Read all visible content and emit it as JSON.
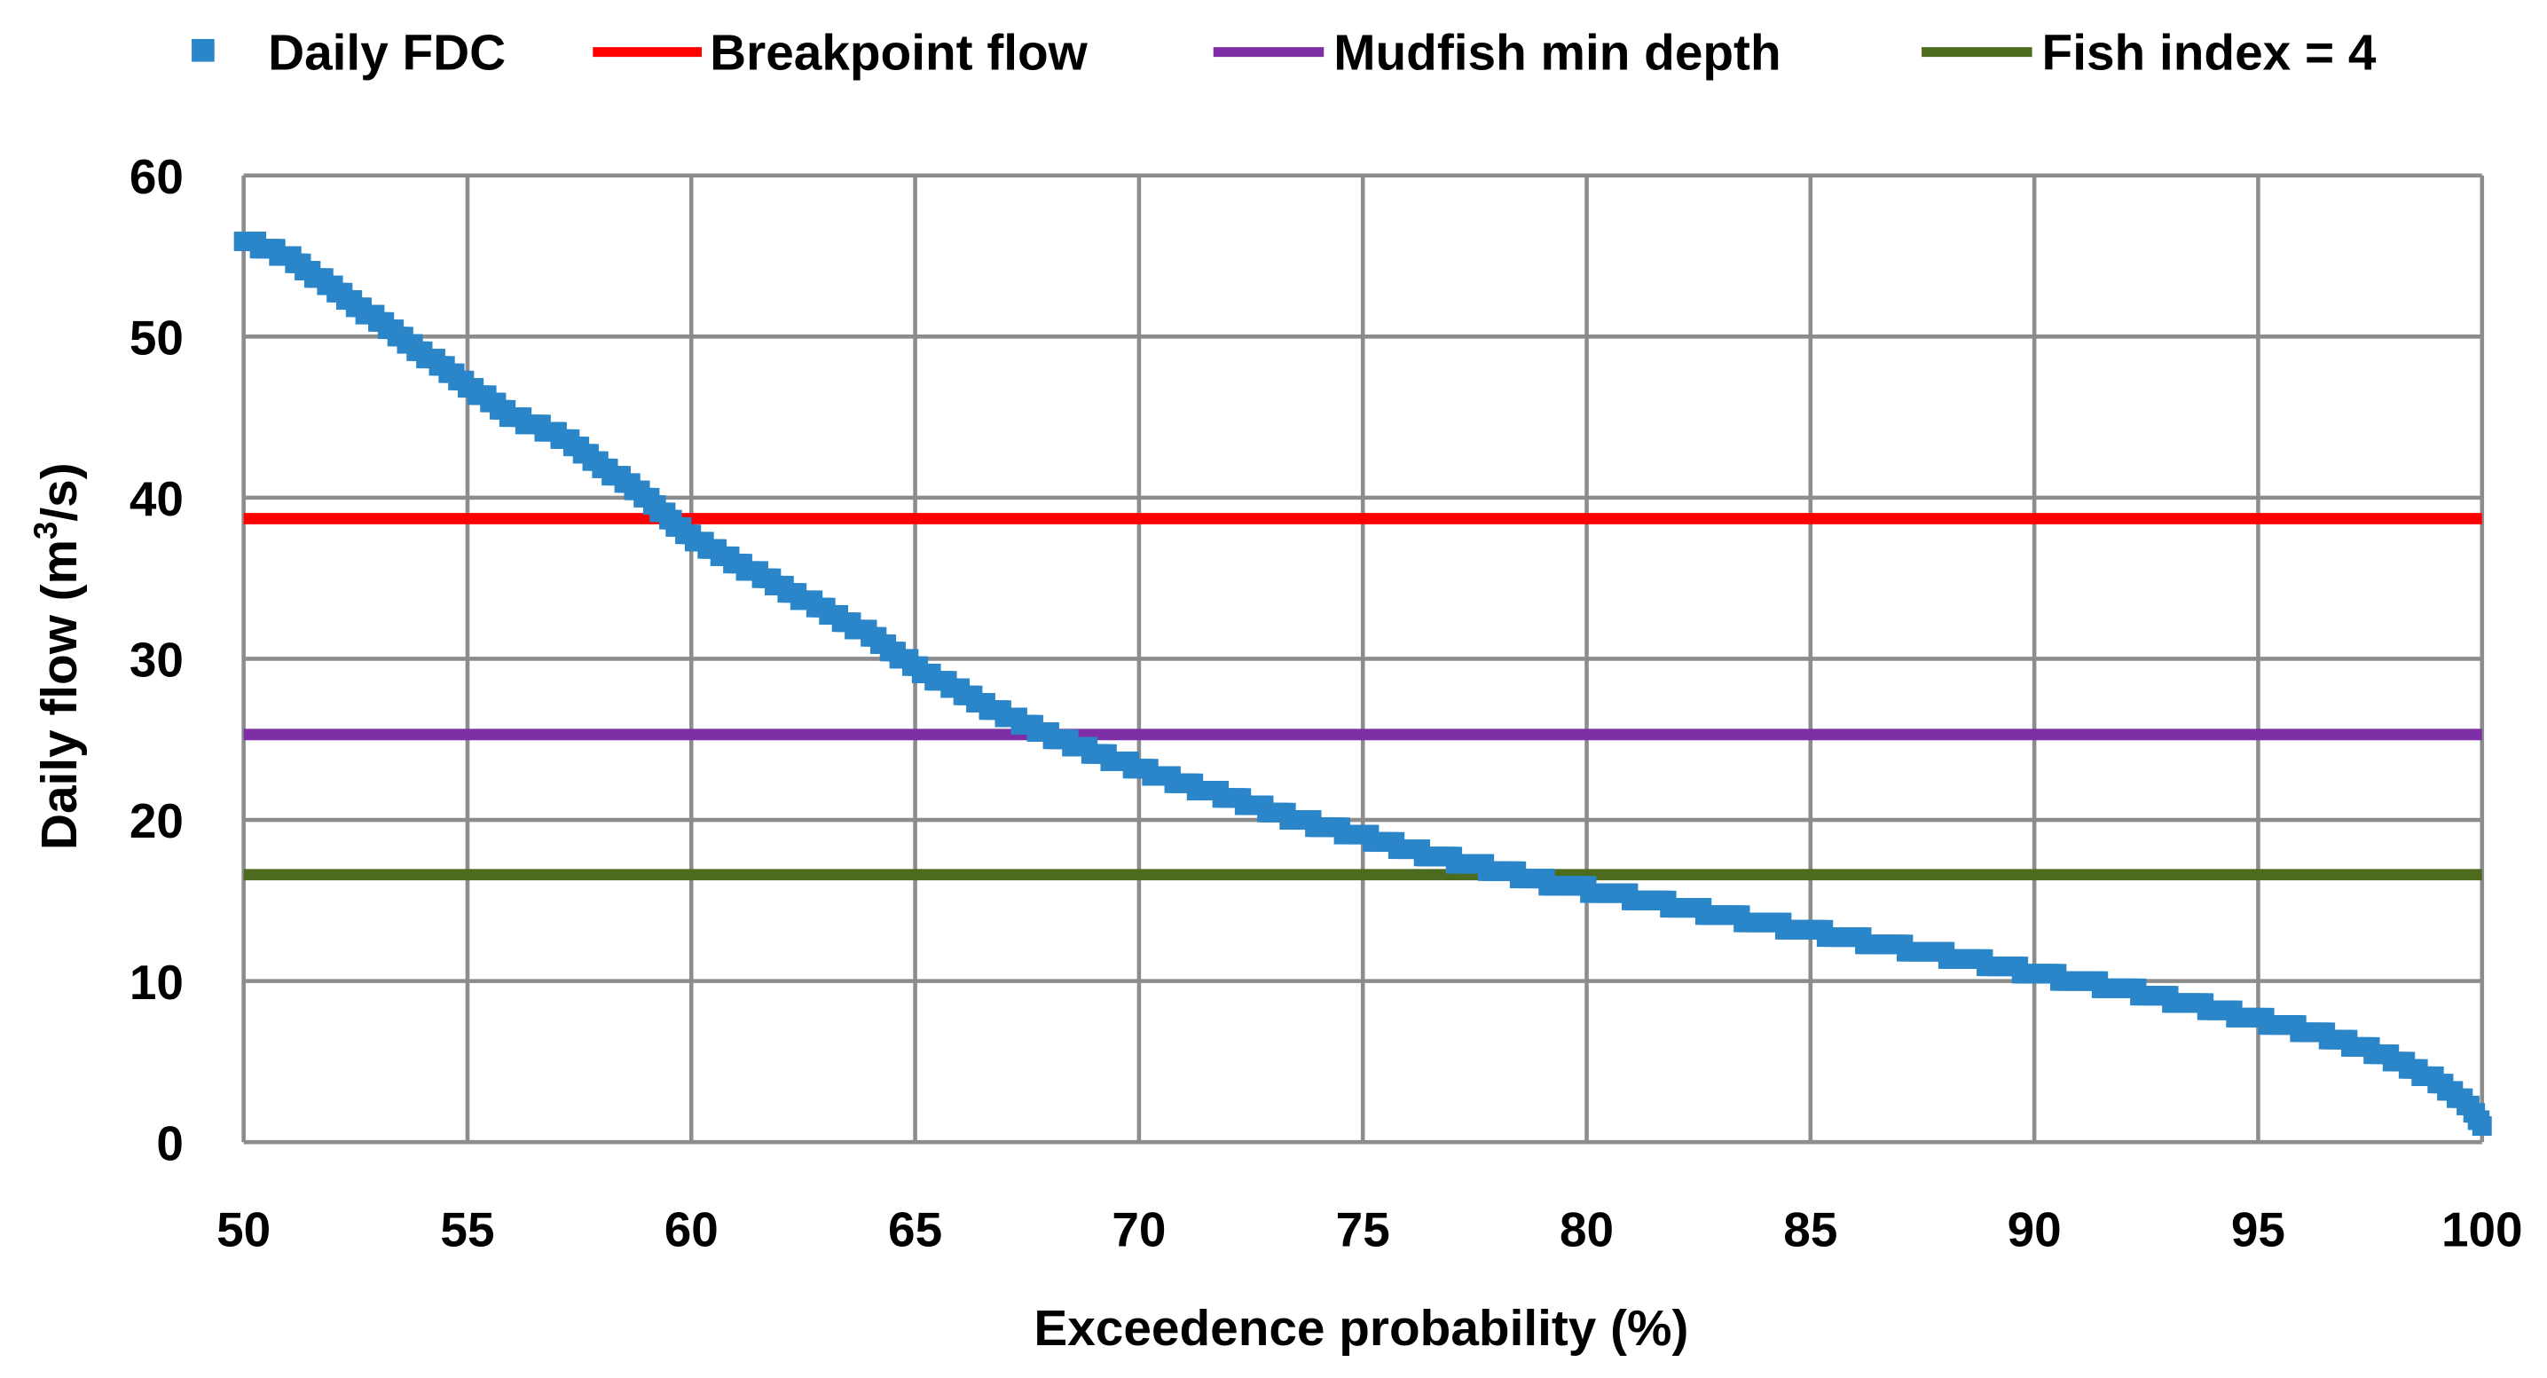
{
  "chart_data": {
    "type": "line",
    "title": "",
    "xlabel": "Exceedence probability (%)",
    "ylabel_prefix": "Daily flow (m",
    "ylabel_sup": "3",
    "ylabel_suffix": "/s)",
    "xlim": [
      50,
      100
    ],
    "ylim": [
      0,
      60
    ],
    "x_ticks": [
      50,
      55,
      60,
      65,
      70,
      75,
      80,
      85,
      90,
      95,
      100
    ],
    "y_ticks": [
      0,
      10,
      20,
      30,
      40,
      50,
      60
    ],
    "grid": true,
    "legend_position": "top",
    "colors": {
      "fdc": "#2a86c8",
      "breakpoint": "#ff0000",
      "mudfish": "#7f2fa6",
      "fish_index": "#4d6b1f",
      "grid": "#8c8c8c"
    },
    "series": [
      {
        "name": "Daily FDC",
        "style": "markers",
        "x": [
          50,
          51,
          52,
          53,
          54,
          55,
          56,
          57,
          58,
          59,
          60,
          61,
          62,
          63,
          64,
          65,
          66,
          67,
          68,
          69,
          70,
          71,
          72,
          73,
          74,
          75,
          76,
          77,
          78,
          79,
          80,
          81,
          82,
          83,
          84,
          85,
          86,
          87,
          88,
          89,
          90,
          91,
          92,
          93,
          94,
          95,
          96,
          97,
          98,
          99,
          99.5,
          99.8,
          100
        ],
        "values": [
          56,
          55,
          53,
          51,
          49,
          47,
          45,
          44,
          42,
          40,
          37.5,
          36,
          34.5,
          33,
          31.5,
          29.5,
          28,
          26.5,
          25.3,
          24.2,
          23.2,
          22.3,
          21.4,
          20.5,
          19.7,
          19,
          18.2,
          17.5,
          16.9,
          16.2,
          15.7,
          15.2,
          14.7,
          14.1,
          13.6,
          13.1,
          12.6,
          12.1,
          11.6,
          11.1,
          10.5,
          10,
          9.5,
          8.9,
          8.3,
          7.6,
          7,
          6.2,
          5.2,
          3.8,
          2.8,
          2,
          1
        ]
      },
      {
        "name": "Breakpoint flow",
        "style": "line",
        "x": [
          50,
          100
        ],
        "values": [
          38.7,
          38.7
        ]
      },
      {
        "name": "Mudfish min depth",
        "style": "line",
        "x": [
          50,
          100
        ],
        "values": [
          25.3,
          25.3
        ]
      },
      {
        "name": "Fish index = 4",
        "style": "line",
        "x": [
          50,
          100
        ],
        "values": [
          16.6,
          16.6
        ]
      }
    ]
  }
}
